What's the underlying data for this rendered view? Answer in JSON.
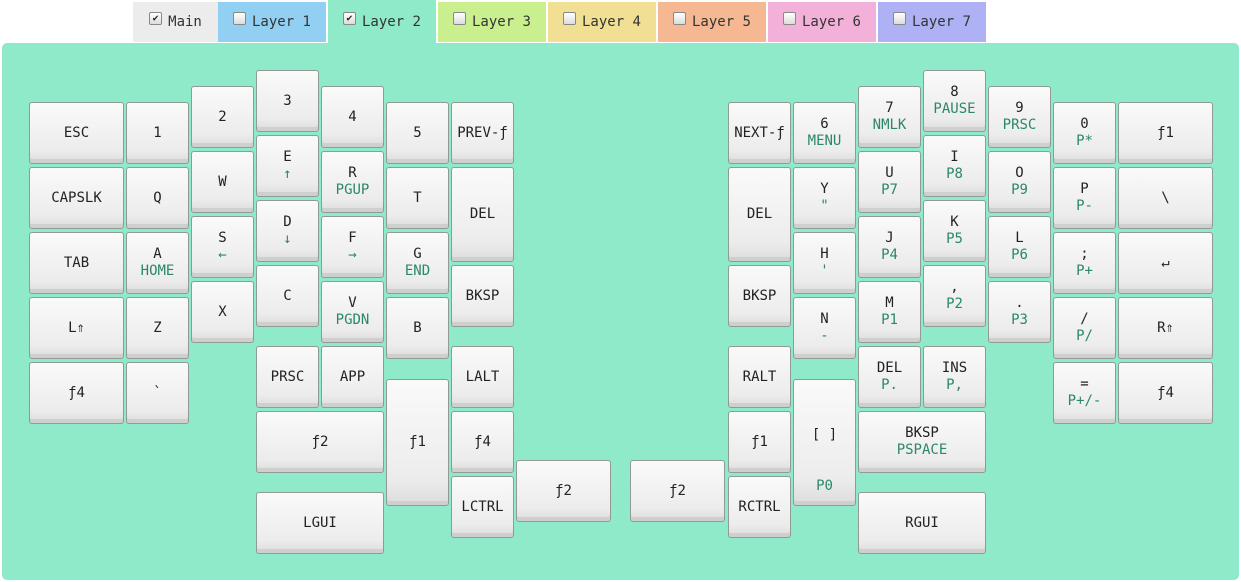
{
  "colors": {
    "board_bg": "#8eeac8",
    "tab_main": "#ececec",
    "tab_l1": "#92d0f3",
    "tab_l2": "#8eeac8",
    "tab_l3": "#caef8f",
    "tab_l4": "#f1df93",
    "tab_l5": "#f6b892",
    "tab_l6": "#f3b1d9",
    "tab_l7": "#aeb1f4"
  },
  "tabs": [
    {
      "label": "Main",
      "checked": true
    },
    {
      "label": "Layer 1",
      "checked": false
    },
    {
      "label": "Layer 2",
      "checked": true,
      "active": true
    },
    {
      "label": "Layer 3",
      "checked": false
    },
    {
      "label": "Layer 4",
      "checked": false
    },
    {
      "label": "Layer 5",
      "checked": false
    },
    {
      "label": "Layer 6",
      "checked": false
    },
    {
      "label": "Layer 7",
      "checked": false
    }
  ],
  "keys": [
    {
      "label": "ESC",
      "sub": ""
    },
    {
      "label": "1",
      "sub": ""
    },
    {
      "label": "2",
      "sub": ""
    },
    {
      "label": "3",
      "sub": ""
    },
    {
      "label": "4",
      "sub": ""
    },
    {
      "label": "5",
      "sub": ""
    },
    {
      "label": "PREV-ƒ",
      "sub": ""
    },
    {
      "label": "CAPSLK",
      "sub": ""
    },
    {
      "label": "Q",
      "sub": ""
    },
    {
      "label": "W",
      "sub": ""
    },
    {
      "label": "E",
      "sub": "↑"
    },
    {
      "label": "R",
      "sub": "PGUP"
    },
    {
      "label": "T",
      "sub": ""
    },
    {
      "label": "DEL",
      "sub": ""
    },
    {
      "label": "TAB",
      "sub": ""
    },
    {
      "label": "A",
      "sub": "HOME"
    },
    {
      "label": "S",
      "sub": "←"
    },
    {
      "label": "D",
      "sub": "↓"
    },
    {
      "label": "F",
      "sub": "→"
    },
    {
      "label": "G",
      "sub": "END"
    },
    {
      "label": "BKSP",
      "sub": ""
    },
    {
      "label": "L⇑",
      "sub": ""
    },
    {
      "label": "Z",
      "sub": ""
    },
    {
      "label": "X",
      "sub": ""
    },
    {
      "label": "C",
      "sub": ""
    },
    {
      "label": "V",
      "sub": "PGDN"
    },
    {
      "label": "B",
      "sub": ""
    },
    {
      "label": "ƒ4",
      "sub": ""
    },
    {
      "label": "`",
      "sub": ""
    },
    {
      "label": "PRSC",
      "sub": ""
    },
    {
      "label": "APP",
      "sub": ""
    },
    {
      "label": "LALT",
      "sub": ""
    },
    {
      "label": "ƒ2",
      "sub": ""
    },
    {
      "label": "ƒ1",
      "sub": ""
    },
    {
      "label": "ƒ4",
      "sub": ""
    },
    {
      "label": "LGUI",
      "sub": ""
    },
    {
      "label": "LCTRL",
      "sub": ""
    },
    {
      "label": "ƒ2",
      "sub": ""
    },
    {
      "label": "ƒ2",
      "sub": ""
    },
    {
      "label": "NEXT-ƒ",
      "sub": ""
    },
    {
      "label": "6",
      "sub": "MENU"
    },
    {
      "label": "7",
      "sub": "NMLK"
    },
    {
      "label": "8",
      "sub": "PAUSE"
    },
    {
      "label": "9",
      "sub": "PRSC"
    },
    {
      "label": "0",
      "sub": "P*"
    },
    {
      "label": "ƒ1",
      "sub": ""
    },
    {
      "label": "DEL",
      "sub": ""
    },
    {
      "label": "Y",
      "sub": "\""
    },
    {
      "label": "U",
      "sub": "P7"
    },
    {
      "label": "I",
      "sub": "P8"
    },
    {
      "label": "O",
      "sub": "P9"
    },
    {
      "label": "P",
      "sub": "P-"
    },
    {
      "label": "\\",
      "sub": ""
    },
    {
      "label": "H",
      "sub": "'"
    },
    {
      "label": "J",
      "sub": "P4"
    },
    {
      "label": "K",
      "sub": "P5"
    },
    {
      "label": "L",
      "sub": "P6"
    },
    {
      "label": ";",
      "sub": "P+"
    },
    {
      "label": "↵",
      "sub": ""
    },
    {
      "label": "BKSP",
      "sub": ""
    },
    {
      "label": "N",
      "sub": "-"
    },
    {
      "label": "M",
      "sub": "P1"
    },
    {
      "label": ",",
      "sub": "P2"
    },
    {
      "label": ".",
      "sub": "P3"
    },
    {
      "label": "/",
      "sub": "P/"
    },
    {
      "label": "R⇑",
      "sub": ""
    },
    {
      "label": "RALT",
      "sub": ""
    },
    {
      "label": "DEL",
      "sub": "P."
    },
    {
      "label": "INS",
      "sub": "P,"
    },
    {
      "label": "=",
      "sub": "P+/-"
    },
    {
      "label": "ƒ4",
      "sub": ""
    },
    {
      "label": "ƒ1",
      "sub": ""
    },
    {
      "label": "[ ]",
      "sub": "P0"
    },
    {
      "label": "BKSP",
      "sub": "PSPACE"
    },
    {
      "label": "RCTRL",
      "sub": ""
    },
    {
      "label": "RGUI",
      "sub": ""
    }
  ]
}
